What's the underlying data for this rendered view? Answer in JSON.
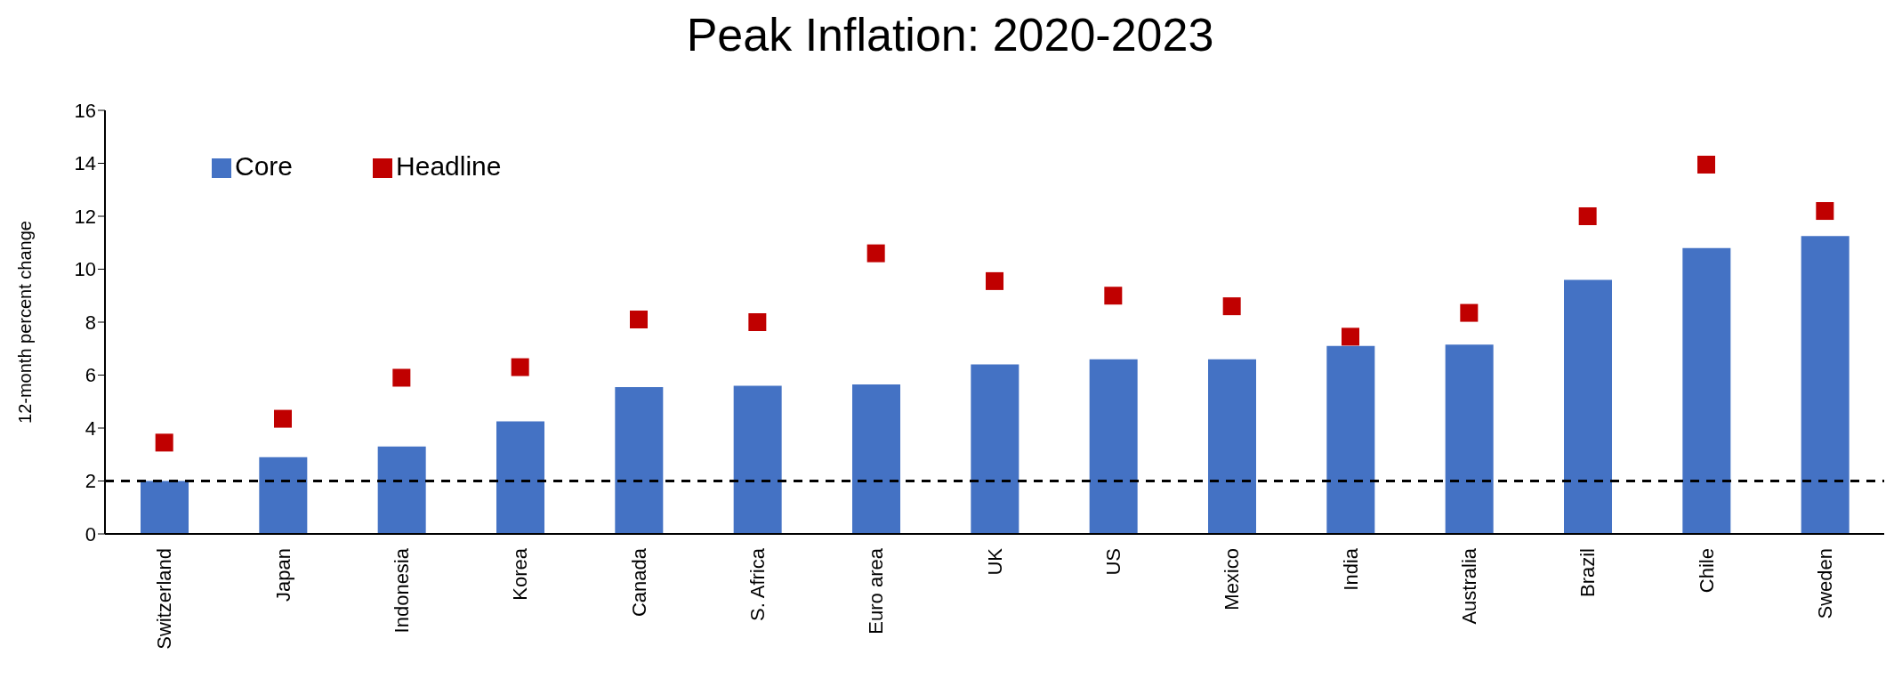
{
  "chart_data": {
    "type": "bar",
    "title": "Peak Inflation: 2020-2023",
    "ylabel": "12-month percent change",
    "categories": [
      "Switzerland",
      "Japan",
      "Indonesia",
      "Korea",
      "Canada",
      "S. Africa",
      "Euro area",
      "UK",
      "US",
      "Mexico",
      "India",
      "Australia",
      "Brazil",
      "Chile",
      "Sweden"
    ],
    "series": [
      {
        "name": "Core",
        "color": "#4472c4",
        "values": [
          2.0,
          2.9,
          3.3,
          4.25,
          5.55,
          5.6,
          5.65,
          6.4,
          6.6,
          6.6,
          7.1,
          7.15,
          9.6,
          10.8,
          11.25
        ]
      },
      {
        "name": "Headline",
        "type": "scatter",
        "color": "#c00000",
        "marker": "square",
        "values": [
          3.45,
          4.35,
          5.9,
          6.3,
          8.1,
          8.0,
          10.6,
          9.55,
          9.0,
          8.6,
          7.45,
          8.35,
          12.0,
          13.95,
          12.2
        ]
      }
    ],
    "ylim": [
      0,
      16
    ],
    "yticks": [
      0,
      2,
      4,
      6,
      8,
      10,
      12,
      14,
      16
    ],
    "grid": false,
    "legend": "top left",
    "ref_lines": [
      {
        "axis": "y",
        "value": 2,
        "color": "#000000",
        "line_style": "dashed"
      }
    ]
  }
}
